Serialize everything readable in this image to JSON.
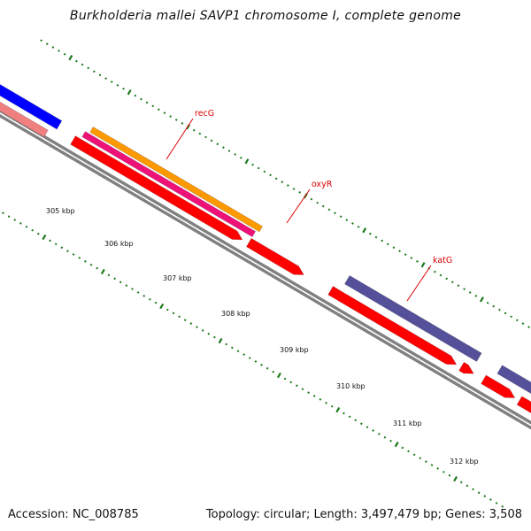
{
  "title": "Burkholderia mallei SAVP1 chromosome I, complete genome",
  "footer": {
    "accession": "Accession: NC_008785",
    "stats": "Topology: circular; Length: 3,497,479 bp; Genes: 3,508"
  },
  "colors": {
    "backbone": "#808080",
    "tick": "#1a7a1a",
    "label_line": "#dd0000",
    "cds": "#ff0000",
    "blue": "#0000ff",
    "pink": "#f08080",
    "orange": "#ff9900",
    "magenta": "#ee1177",
    "purple": "#55509a"
  },
  "tick_labels": [
    "305 kbp",
    "306 kbp",
    "307 kbp",
    "308 kbp",
    "309 kbp",
    "310 kbp",
    "311 kbp",
    "312 kbp"
  ],
  "gene_labels": [
    "recG",
    "oxyR",
    "katG"
  ]
}
